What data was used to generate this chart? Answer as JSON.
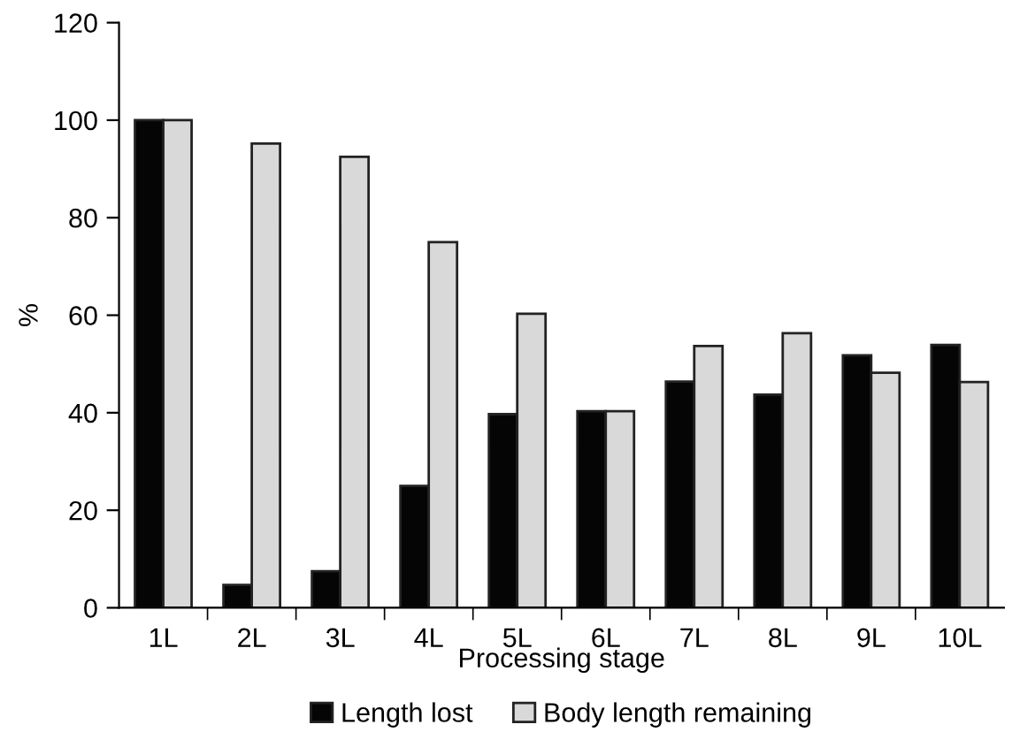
{
  "chart_data": {
    "type": "bar",
    "xlabel": "Processing stage",
    "ylabel": "%",
    "categories": [
      "1L",
      "2L",
      "3L",
      "4L",
      "5L",
      "6L",
      "7L",
      "8L",
      "9L",
      "10L"
    ],
    "series": [
      {
        "name": "Length lost",
        "color": "#050505",
        "values": [
          100,
          4.7,
          7.5,
          25,
          39.7,
          40.3,
          46.4,
          43.7,
          51.8,
          53.9
        ]
      },
      {
        "name": "Body length remaining",
        "color": "#d9d9d9",
        "values": [
          100,
          95.2,
          92.5,
          75,
          60.3,
          40.3,
          53.7,
          56.3,
          48.2,
          46.3
        ]
      }
    ],
    "ylim": [
      0,
      120
    ],
    "yticks": [
      0,
      20,
      40,
      60,
      80,
      100,
      120
    ],
    "grid": false,
    "legend": "bottom"
  }
}
